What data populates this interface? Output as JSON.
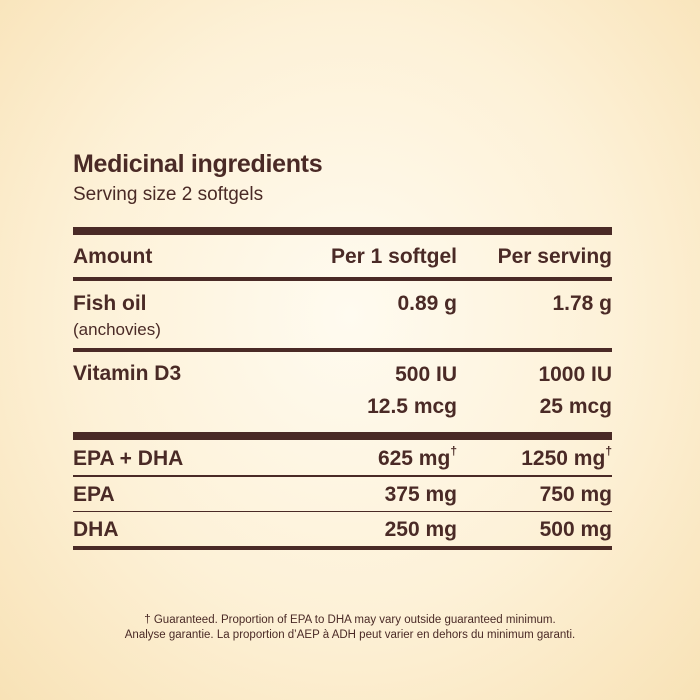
{
  "header": {
    "title": "Medicinal ingredients",
    "serving": "Serving size 2 softgels"
  },
  "table": {
    "columns": [
      "Amount",
      "Per 1 softgel",
      "Per serving"
    ],
    "fish_oil": {
      "name": "Fish oil",
      "source": "(anchovies)",
      "per_softgel": "0.89 g",
      "per_serving": "1.78 g"
    },
    "vitamin_d3": {
      "name": "Vitamin D3",
      "per_softgel_iu": "500 IU",
      "per_softgel_mcg": "12.5 mcg",
      "per_serving_iu": "1000 IU",
      "per_serving_mcg": "25 mcg"
    },
    "epa_dha": {
      "name": "EPA + DHA",
      "per_softgel": "625 mg",
      "per_serving": "1250 mg",
      "mark": "†"
    },
    "epa": {
      "name": "EPA",
      "per_softgel": "375 mg",
      "per_serving": "750 mg"
    },
    "dha": {
      "name": "DHA",
      "per_softgel": "250 mg",
      "per_serving": "500 mg"
    }
  },
  "footnote": {
    "line_en": "† Guaranteed. Proportion of EPA to DHA may vary outside guaranteed minimum.",
    "line_fr": "Analyse garantie. La proportion d’AEP à ADH peut varier en dehors du minimum garanti."
  },
  "colors": {
    "text": "#4a2a26",
    "background_center": "#fffbf0",
    "background_edge": "#f8e2b6"
  }
}
